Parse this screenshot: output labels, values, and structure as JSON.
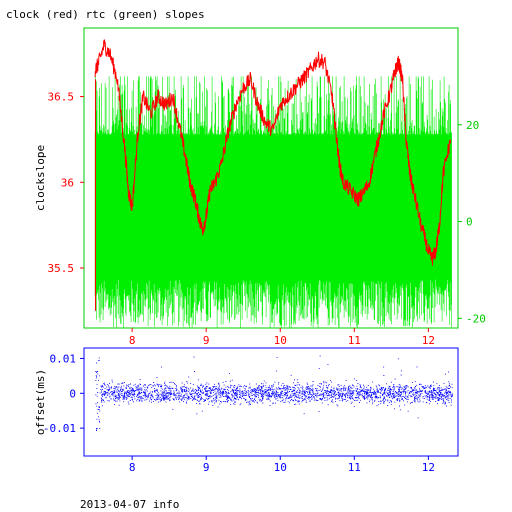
{
  "title": "clock (red) rtc (green) slopes",
  "footer": "2013-04-07 info",
  "colors": {
    "clock": "#ff0000",
    "rtc": "#00ee00",
    "offset": "#0000ff",
    "axis_red": "#ff0000",
    "axis_green": "#00cc00",
    "axis_blue": "#0000ff"
  },
  "chart_data": [
    {
      "type": "line",
      "xlabel": "",
      "ylabel": "clockslope",
      "xlim": [
        7.35,
        12.4
      ],
      "ylim": [
        35.15,
        36.9
      ],
      "xticks": [
        8,
        9,
        10,
        11,
        12
      ],
      "yticks": [
        35.5,
        36,
        36.5
      ],
      "y2lim": [
        -22,
        40
      ],
      "y2ticks": [
        -20,
        0,
        20
      ],
      "series": [
        {
          "name": "clock",
          "axis": "left",
          "x": [
            7.5,
            7.55,
            7.62,
            7.7,
            7.8,
            7.9,
            7.95,
            8.0,
            8.08,
            8.15,
            8.25,
            8.35,
            8.45,
            8.55,
            8.65,
            8.72,
            8.78,
            8.85,
            8.9,
            8.95,
            9.0,
            9.05,
            9.12,
            9.2,
            9.3,
            9.4,
            9.5,
            9.6,
            9.7,
            9.8,
            9.9,
            10.0,
            10.1,
            10.2,
            10.3,
            10.4,
            10.5,
            10.6,
            10.7,
            10.75,
            10.8,
            10.85,
            10.95,
            11.05,
            11.1,
            11.2,
            11.3,
            11.4,
            11.5,
            11.55,
            11.6,
            11.65,
            11.7,
            11.75,
            11.8,
            11.9,
            12.0,
            12.05,
            12.1,
            12.15,
            12.2,
            12.3
          ],
          "y": [
            36.65,
            36.7,
            36.8,
            36.75,
            36.6,
            36.2,
            35.95,
            35.85,
            36.3,
            36.5,
            36.4,
            36.5,
            36.45,
            36.5,
            36.3,
            36.15,
            36.0,
            35.9,
            35.8,
            35.72,
            35.8,
            35.95,
            36.0,
            36.1,
            36.3,
            36.45,
            36.55,
            36.6,
            36.45,
            36.35,
            36.3,
            36.45,
            36.5,
            36.55,
            36.6,
            36.65,
            36.72,
            36.7,
            36.5,
            36.3,
            36.1,
            36.0,
            35.95,
            35.9,
            35.92,
            36.0,
            36.2,
            36.4,
            36.55,
            36.65,
            36.7,
            36.6,
            36.25,
            36.05,
            35.95,
            35.75,
            35.6,
            35.55,
            35.6,
            35.75,
            36.05,
            36.25
          ]
        },
        {
          "name": "rtc",
          "axis": "right",
          "x_range": [
            7.5,
            12.32
          ],
          "mean": 0,
          "spread": [
            -20,
            30
          ]
        }
      ]
    },
    {
      "type": "scatter",
      "xlabel": "",
      "ylabel": "offset(ms)",
      "xlim": [
        7.35,
        12.4
      ],
      "ylim": [
        -0.018,
        0.013
      ],
      "xticks": [
        8,
        9,
        10,
        11,
        12
      ],
      "yticks": [
        0.01,
        0,
        -0.01
      ],
      "series": [
        {
          "name": "offset",
          "x_range": [
            7.5,
            12.32
          ],
          "mean": 0,
          "spread": [
            -0.011,
            0.012
          ]
        }
      ]
    }
  ]
}
